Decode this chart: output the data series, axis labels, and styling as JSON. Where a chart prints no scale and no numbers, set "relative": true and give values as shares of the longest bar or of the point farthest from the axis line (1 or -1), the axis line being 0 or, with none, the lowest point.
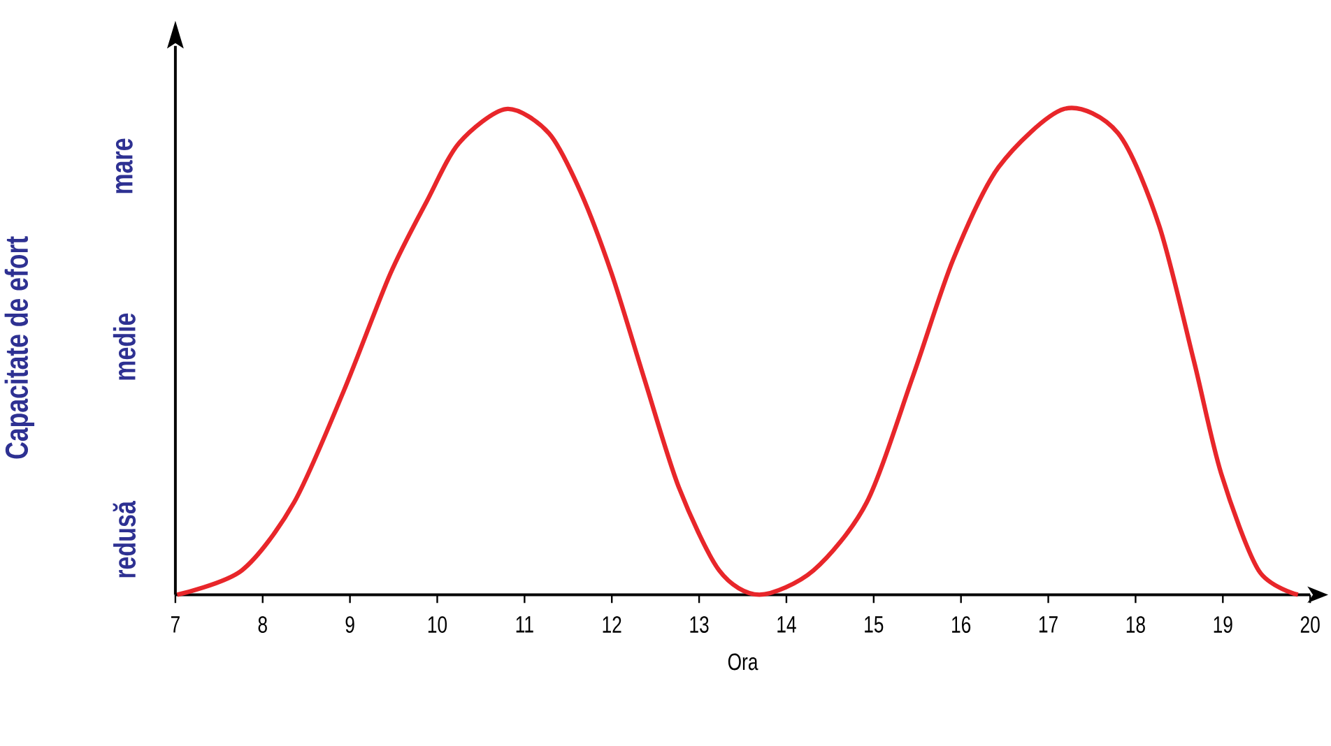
{
  "chart_data": {
    "type": "line",
    "xlabel": "Ora",
    "ylabel": "Capacitate de efort",
    "xlim": [
      7,
      20
    ],
    "xticks": [
      7,
      8,
      9,
      10,
      11,
      12,
      13,
      14,
      15,
      16,
      17,
      18,
      19,
      20
    ],
    "relative": true,
    "annotations": [
      "redusă",
      "medie",
      "mare"
    ],
    "marker": "none",
    "line_style": "solid",
    "series": [
      {
        "color": "#e8262a",
        "x": [
          7.02,
          7.76,
          8.36,
          8.93,
          9.46,
          9.88,
          10.25,
          10.79,
          11.28,
          11.64,
          12.0,
          12.38,
          12.77,
          13.23,
          13.69,
          14.31,
          14.92,
          15.45,
          15.91,
          16.43,
          17.18,
          17.8,
          18.27,
          18.67,
          18.98,
          19.41,
          19.86
        ],
        "values": [
          0,
          0.05,
          0.19,
          0.42,
          0.66,
          0.81,
          0.93,
          1.0,
          0.95,
          0.83,
          0.66,
          0.44,
          0.22,
          0.05,
          0,
          0.05,
          0.19,
          0.45,
          0.69,
          0.88,
          1.0,
          0.95,
          0.76,
          0.48,
          0.25,
          0.05,
          0
        ]
      }
    ]
  }
}
